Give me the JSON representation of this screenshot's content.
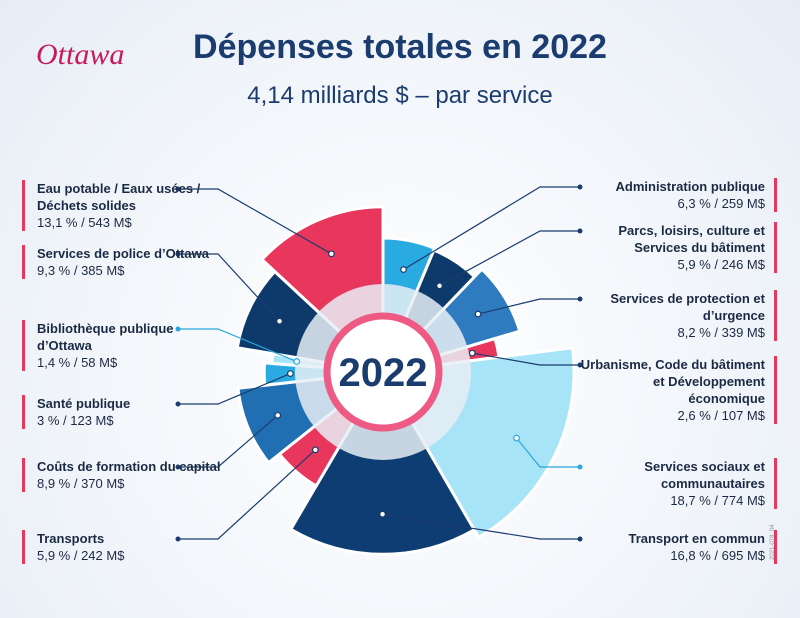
{
  "chart_data": {
    "type": "pie",
    "logo": "Ottawa",
    "title": "Dépenses totales en 2022",
    "subtitle": "4,14 milliards $ – par service",
    "center_label": "2022",
    "code": "2021-078_04",
    "categories": [
      "Administration publique",
      "Parcs, loisirs, culture et Services du bâtiment",
      "Services de protection et d’urgence",
      "Urbanisme, Code du bâtiment et Développement économique",
      "Services sociaux et communautaires",
      "Transport en commun",
      "Transports",
      "Coûts de formation du capital",
      "Santé publique",
      "Bibliothèque publique d’Ottawa",
      "Services de police d’Ottawa",
      "Eau potable / Eaux usées / Déchets solides"
    ],
    "values": [
      6.3,
      5.9,
      8.2,
      2.6,
      18.7,
      16.8,
      5.9,
      8.9,
      3,
      1.4,
      9.3,
      13.1
    ],
    "value_labels": [
      "6,3 % / 259 M$",
      "5,9 % / 246 M$",
      "8,2 % / 339 M$",
      "2,6 % / 107 M$",
      "18,7 % / 774 M$",
      "16,8 % / 695 M$",
      "5,9 % / 242 M$",
      "8,9 % / 370 M$",
      "3 % / 123 M$",
      "1,4 % / 58 M$",
      "9,3 % / 385 M$",
      "13,1 % / 543 M$"
    ],
    "colors": [
      "#29abe2",
      "#0d3a6b",
      "#2e7bbf",
      "#e8365d",
      "#a8e4f7",
      "#0e3d73",
      "#e8365d",
      "#1f6fb2",
      "#29abe2",
      "#a8e4f7",
      "#0d3a6b",
      "#e8365d"
    ]
  }
}
